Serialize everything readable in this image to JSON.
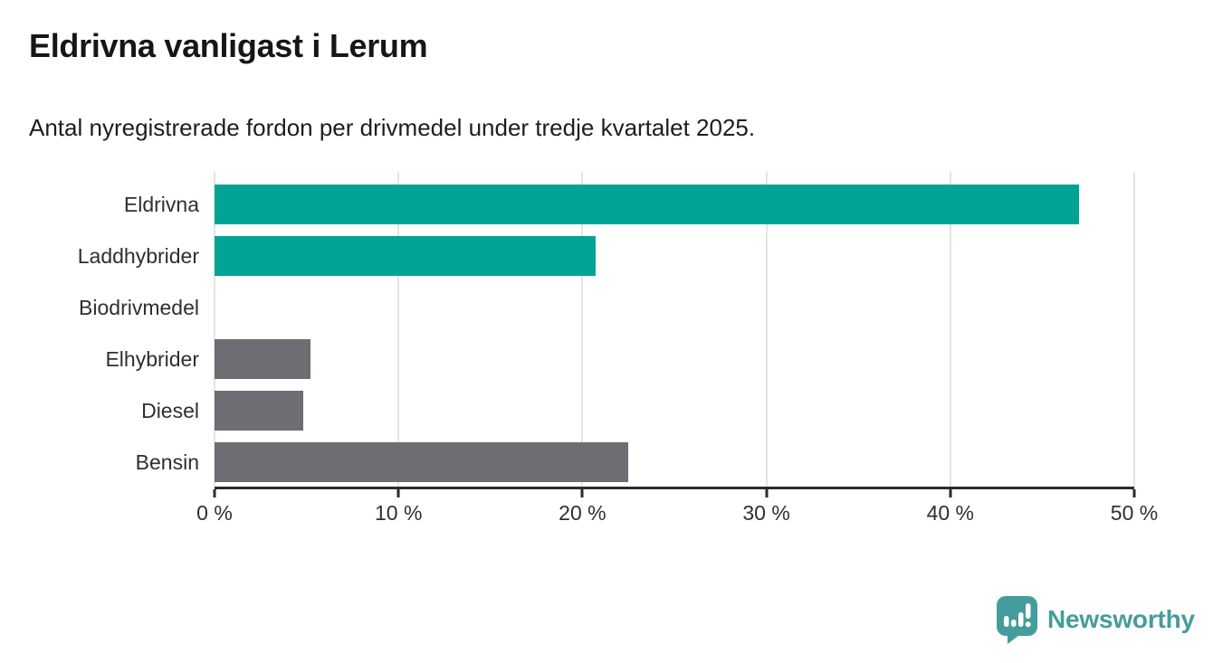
{
  "title": "Eldrivna vanligast i Lerum",
  "subtitle": "Antal nyregistrerade fordon per drivmedel under tredje kvartalet 2025.",
  "colors": {
    "highlight_teal": "#00a396",
    "neutral_gray": "#6e6d74",
    "axis": "#2b2b2b",
    "grid": "#e4e4e4",
    "logo_teal": "#459d9b"
  },
  "chart_data": {
    "type": "bar",
    "orientation": "horizontal",
    "title": "Eldrivna vanligast i Lerum",
    "subtitle": "Antal nyregistrerade fordon per drivmedel under tredje kvartalet 2025.",
    "categories": [
      "Eldrivna",
      "Laddhybrider",
      "Biodrivmedel",
      "Elhybrider",
      "Diesel",
      "Bensin"
    ],
    "values": [
      47,
      20.7,
      0,
      5.2,
      4.8,
      22.5
    ],
    "bar_colors": [
      "#00a396",
      "#00a396",
      "#00a396",
      "#6e6d74",
      "#6e6d74",
      "#6e6d74"
    ],
    "unit": "%",
    "xlabel": "",
    "ylabel": "",
    "xlim": [
      0,
      50
    ],
    "x_ticks": [
      0,
      10,
      20,
      30,
      40,
      50
    ],
    "x_tick_labels": [
      "0 %",
      "10 %",
      "20 %",
      "30 %",
      "40 %",
      "50 %"
    ],
    "grid": "vertical",
    "legend": "none"
  },
  "logo": {
    "text": "Newsworthy"
  }
}
